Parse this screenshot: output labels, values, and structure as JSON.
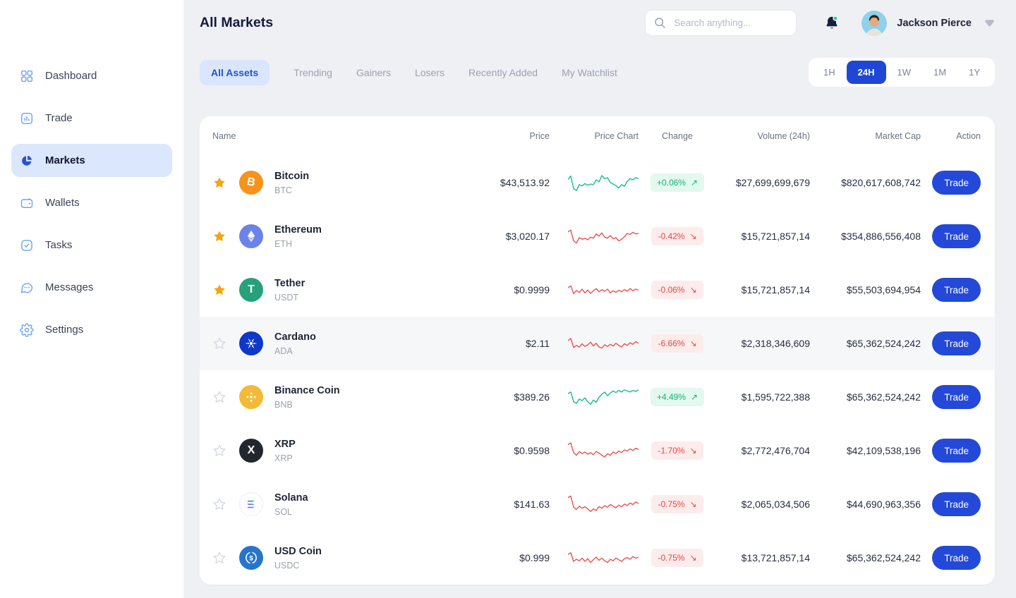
{
  "sidebar": {
    "items": [
      {
        "label": "Dashboard",
        "icon": "dashboard-grid-icon",
        "active": false
      },
      {
        "label": "Trade",
        "icon": "trade-bars-icon",
        "active": false
      },
      {
        "label": "Markets",
        "icon": "markets-pie-icon",
        "active": true
      },
      {
        "label": "Wallets",
        "icon": "wallet-icon",
        "active": false
      },
      {
        "label": "Tasks",
        "icon": "tasks-check-icon",
        "active": false
      },
      {
        "label": "Messages",
        "icon": "messages-bubble-icon",
        "active": false
      },
      {
        "label": "Settings",
        "icon": "settings-gear-icon",
        "active": false
      }
    ]
  },
  "header": {
    "title": "All Markets",
    "search_placeholder": "Search anything...",
    "user_name": "Jackson Pierce",
    "notification_unread": true
  },
  "tabs": [
    {
      "label": "All Assets",
      "active": true
    },
    {
      "label": "Trending",
      "active": false
    },
    {
      "label": "Gainers",
      "active": false
    },
    {
      "label": "Losers",
      "active": false
    },
    {
      "label": "Recently Added",
      "active": false
    },
    {
      "label": "My Watchlist",
      "active": false
    }
  ],
  "time_filters": [
    {
      "label": "1H",
      "active": false
    },
    {
      "label": "24H",
      "active": true
    },
    {
      "label": "1W",
      "active": false
    },
    {
      "label": "1M",
      "active": false
    },
    {
      "label": "1Y",
      "active": false
    }
  ],
  "table": {
    "columns": [
      "Name",
      "Price",
      "Price Chart",
      "Change",
      "Volume (24h)",
      "Market Cap",
      "Action"
    ],
    "action_label": "Trade",
    "arrows": {
      "up": "↗",
      "down": "↘"
    },
    "rows": [
      {
        "name": "Bitcoin",
        "symbol": "BTC",
        "starred": true,
        "highlighted": false,
        "price": "$43,513.92",
        "change": "+0.06%",
        "direction": "up",
        "volume": "$27,699,699,679",
        "market_cap": "$820,617,608,742",
        "icon": {
          "type": "text",
          "bg": "#f7931a",
          "glyph": "B",
          "tilt": true
        },
        "spark": {
          "color": "#16bd8e",
          "points": [
            60,
            72,
            25,
            18,
            40,
            35,
            44,
            38,
            42,
            40,
            58,
            50,
            74,
            62,
            66,
            48,
            42,
            36,
            28,
            40,
            34,
            52,
            62,
            58,
            66,
            62
          ]
        }
      },
      {
        "name": "Ethereum",
        "symbol": "ETH",
        "starred": true,
        "highlighted": false,
        "price": "$3,020.17",
        "change": "-0.42%",
        "direction": "down",
        "volume": "$15,721,857,14",
        "market_cap": "$354,886,556,408",
        "icon": {
          "type": "eth",
          "bg": "#6b82ea"
        },
        "spark": {
          "color": "#ef5050",
          "points": [
            64,
            70,
            30,
            22,
            42,
            36,
            40,
            34,
            44,
            40,
            56,
            48,
            60,
            44,
            40,
            50,
            38,
            42,
            30,
            36,
            46,
            58,
            54,
            62,
            56,
            58
          ]
        }
      },
      {
        "name": "Tether",
        "symbol": "USDT",
        "starred": true,
        "highlighted": false,
        "price": "$0.9999",
        "change": "-0.06%",
        "direction": "down",
        "volume": "$15,721,857,14",
        "market_cap": "$55,503,694,954",
        "icon": {
          "type": "text",
          "bg": "#26a17b",
          "glyph": "T",
          "tilt": false
        },
        "spark": {
          "color": "#ef5050",
          "points": [
            55,
            62,
            33,
            45,
            38,
            50,
            36,
            46,
            34,
            44,
            52,
            40,
            48,
            42,
            50,
            36,
            44,
            38,
            46,
            40,
            48,
            42,
            52,
            44,
            50,
            46
          ]
        }
      },
      {
        "name": "Cardano",
        "symbol": "ADA",
        "starred": false,
        "highlighted": true,
        "price": "$2.11",
        "change": "-6.66%",
        "direction": "down",
        "volume": "$2,318,346,609",
        "market_cap": "$65,362,524,242",
        "icon": {
          "type": "ada",
          "bg": "#0d38c8"
        },
        "spark": {
          "color": "#ef5050",
          "points": [
            58,
            66,
            32,
            40,
            34,
            46,
            36,
            42,
            52,
            38,
            48,
            34,
            30,
            42,
            36,
            44,
            38,
            48,
            40,
            34,
            46,
            40,
            50,
            44,
            54,
            48
          ]
        }
      },
      {
        "name": "Binance Coin",
        "symbol": "BNB",
        "starred": false,
        "highlighted": false,
        "price": "$389.26",
        "change": "+4.49%",
        "direction": "up",
        "volume": "$1,595,722,388",
        "market_cap": "$65,362,524,242",
        "icon": {
          "type": "bnb",
          "bg": "#f2ba36"
        },
        "spark": {
          "color": "#16bd8e",
          "points": [
            60,
            66,
            30,
            24,
            40,
            34,
            44,
            30,
            20,
            36,
            28,
            46,
            58,
            66,
            52,
            62,
            70,
            64,
            72,
            66,
            74,
            70,
            66,
            72,
            68,
            74
          ]
        }
      },
      {
        "name": "XRP",
        "symbol": "XRP",
        "starred": false,
        "highlighted": false,
        "price": "$0.9598",
        "change": "-1.70%",
        "direction": "down",
        "volume": "$2,772,476,704",
        "market_cap": "$42,109,538,196",
        "icon": {
          "type": "text",
          "bg": "#22272e",
          "glyph": "X",
          "tilt": false
        },
        "spark": {
          "color": "#ef5050",
          "points": [
            70,
            76,
            40,
            30,
            44,
            36,
            42,
            34,
            40,
            32,
            44,
            38,
            30,
            24,
            36,
            30,
            42,
            36,
            46,
            40,
            50,
            46,
            54,
            48,
            56,
            52
          ]
        }
      },
      {
        "name": "Solana",
        "symbol": "SOL",
        "starred": false,
        "highlighted": false,
        "price": "$141.63",
        "change": "-0.75%",
        "direction": "down",
        "volume": "$2,065,034,506",
        "market_cap": "$44,690,963,356",
        "icon": {
          "type": "sol",
          "bg": "#ffffff"
        },
        "spark": {
          "color": "#ef5050",
          "points": [
            72,
            78,
            36,
            28,
            40,
            32,
            38,
            30,
            20,
            30,
            24,
            38,
            32,
            42,
            36,
            46,
            40,
            34,
            44,
            38,
            48,
            42,
            52,
            46,
            56,
            50
          ]
        }
      },
      {
        "name": "USD Coin",
        "symbol": "USDC",
        "starred": false,
        "highlighted": false,
        "price": "$0.999",
        "change": "-0.75%",
        "direction": "down",
        "volume": "$13,721,857,14",
        "market_cap": "$65,362,524,242",
        "icon": {
          "type": "usdc",
          "bg": "#2775ca"
        },
        "spark": {
          "color": "#ef5050",
          "points": [
            60,
            66,
            34,
            42,
            36,
            46,
            34,
            44,
            30,
            40,
            50,
            38,
            46,
            36,
            30,
            42,
            36,
            46,
            40,
            34,
            44,
            48,
            42,
            52,
            46,
            50
          ]
        }
      }
    ]
  },
  "colors": {
    "accent_blue": "#2449d8",
    "active_pill_bg": "#dbe7fc",
    "positive": "#12b377",
    "negative": "#f0423e",
    "positive_bg": "#e3f8ee",
    "negative_bg": "#fdecec",
    "star_gold": "#f5a50b",
    "spark_up": "#16bd8e",
    "spark_down": "#ef5050"
  }
}
